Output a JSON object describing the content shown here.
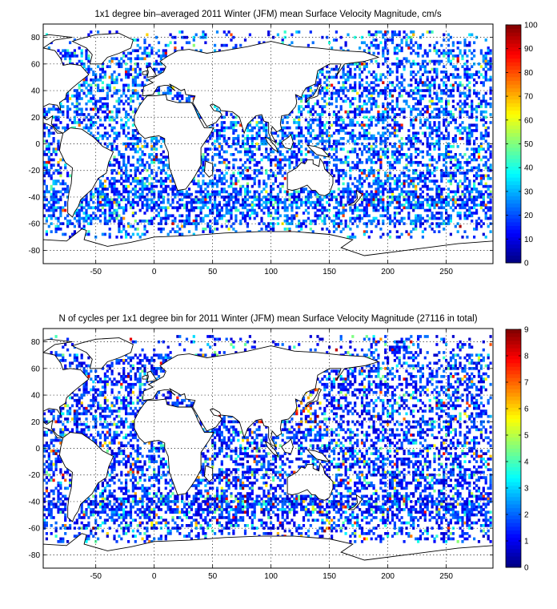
{
  "panels": [
    {
      "title": "1x1 degree bin–averaged 2011 Winter (JFM) mean Surface Velocity Magnitude, cm/s"
    },
    {
      "title": "N of cycles per 1x1 degree bin for 2011 Winter (JFM) mean Surface Velocity Magnitude (27116 in total)"
    }
  ],
  "chart_data": [
    {
      "type": "heatmap",
      "title": "1x1 degree bin–averaged 2011 Winter (JFM) mean Surface Velocity Magnitude, cm/s",
      "xlabel": "",
      "ylabel": "",
      "xlim": [
        -95,
        290
      ],
      "ylim": [
        -90,
        90
      ],
      "x_ticks": [
        -50,
        0,
        50,
        100,
        150,
        200,
        250
      ],
      "y_ticks": [
        80,
        60,
        40,
        20,
        0,
        -20,
        -40,
        -60,
        -80
      ],
      "grid": true,
      "grid_style": "dotted",
      "colorbar": {
        "min": 0,
        "max": 100,
        "ticks": [
          0,
          10,
          20,
          30,
          40,
          50,
          60,
          70,
          80,
          90,
          100
        ],
        "colormap": "jet",
        "placement": "right"
      },
      "typical_value_range": [
        5,
        30
      ],
      "notes_visible": "sparse 1x1 degree bins over ocean, mostly dark-blue to cyan with scattered green/yellow/red"
    },
    {
      "type": "heatmap",
      "title": "N of cycles per 1x1 degree bin for 2011 Winter (JFM) mean Surface Velocity Magnitude (27116 in total)",
      "xlabel": "",
      "ylabel": "",
      "xlim": [
        -95,
        290
      ],
      "ylim": [
        -90,
        90
      ],
      "x_ticks": [
        -50,
        0,
        50,
        100,
        150,
        200,
        250
      ],
      "y_ticks": [
        80,
        60,
        40,
        20,
        0,
        -20,
        -40,
        -60,
        -80
      ],
      "grid": true,
      "grid_style": "dotted",
      "colorbar": {
        "min": 0,
        "max": 9,
        "ticks": [
          0,
          1,
          2,
          3,
          4,
          5,
          6,
          7,
          8,
          9
        ],
        "colormap": "jet",
        "placement": "right"
      },
      "total_cycles": 27116,
      "typical_value_range": [
        1,
        3
      ]
    }
  ]
}
